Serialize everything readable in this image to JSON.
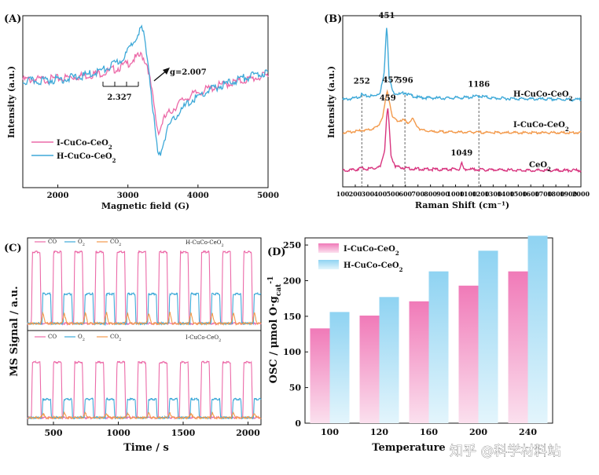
{
  "colors": {
    "pink": "#ec6aa8",
    "blue": "#3ea9d8",
    "orange": "#f39a4c",
    "magenta": "#d8357f",
    "bar_pink_top": "#f07ab8",
    "bar_pink_bottom": "#fbe0ee",
    "bar_blue_top": "#8fd3f2",
    "bar_blue_bottom": "#e3f5fc"
  },
  "watermark": {
    "text": "知乎 @科学材料站"
  },
  "chart_data": [
    {
      "id": "A",
      "panel_label": "(A)",
      "type": "line",
      "title": "",
      "xlabel": "Magnetic field (G)",
      "ylabel": "Intensity (a.u.)",
      "xlim": [
        1500,
        5000
      ],
      "ylim": [
        -1.0,
        1.0
      ],
      "xticks": [
        "2000",
        "3000",
        "4000",
        "5000"
      ],
      "xtick_values": [
        2000,
        3000,
        4000,
        5000
      ],
      "annotations": {
        "g_value": "g=2.007",
        "scale_bar": "2.327"
      },
      "series": [
        {
          "name": "I-CuCo-CeO2",
          "legend_text": "I-CuCo-CeO",
          "legend_sub": "2",
          "color": "#ec6aa8",
          "x": [
            1500,
            1800,
            2100,
            2400,
            2700,
            2900,
            3000,
            3100,
            3200,
            3280,
            3350,
            3420,
            3450,
            3500,
            3600,
            3800,
            4000,
            4300,
            4700,
            5000
          ],
          "y": [
            0.03,
            0.03,
            0.05,
            0.08,
            0.12,
            0.18,
            0.22,
            0.28,
            0.32,
            0.2,
            -0.15,
            -0.55,
            -0.58,
            -0.45,
            -0.35,
            -0.2,
            -0.12,
            -0.04,
            0.03,
            0.08
          ]
        },
        {
          "name": "H-CuCo-CeO2",
          "legend_text": "H-CuCo-CeO",
          "legend_sub": "2",
          "color": "#3ea9d8",
          "x": [
            1500,
            1800,
            2100,
            2400,
            2700,
            2900,
            3000,
            3100,
            3180,
            3220,
            3300,
            3380,
            3430,
            3460,
            3550,
            3700,
            3900,
            4200,
            4600,
            5000
          ],
          "y": [
            0.01,
            0.02,
            0.04,
            0.08,
            0.16,
            0.26,
            0.36,
            0.52,
            0.64,
            0.58,
            0.15,
            -0.5,
            -0.88,
            -0.85,
            -0.58,
            -0.38,
            -0.22,
            -0.08,
            0.04,
            0.12
          ]
        }
      ]
    },
    {
      "id": "B",
      "panel_label": "(B)",
      "type": "line",
      "title": "",
      "xlabel": "Raman Shift (cm⁻¹)",
      "ylabel": "Intensity (a.u.)",
      "xlim": [
        100,
        2000
      ],
      "xticks": [
        "100",
        "200",
        "300",
        "400",
        "500",
        "600",
        "700",
        "800",
        "900",
        "1000",
        "1100",
        "1200",
        "1300",
        "1400",
        "1500",
        "1600",
        "1700",
        "1800",
        "1900",
        "2000"
      ],
      "xtick_values": [
        100,
        200,
        300,
        400,
        500,
        600,
        700,
        800,
        900,
        1000,
        1100,
        1200,
        1300,
        1400,
        1500,
        1600,
        1700,
        1800,
        1900,
        2000
      ],
      "peak_labels": [
        {
          "x": 252,
          "text": "252",
          "series": 0
        },
        {
          "x": 451,
          "text": "451",
          "series": 0
        },
        {
          "x": 596,
          "text": "596",
          "series": 0
        },
        {
          "x": 1186,
          "text": "1186",
          "series": 0
        },
        {
          "x": 457,
          "text": "457",
          "series": 1
        },
        {
          "x": 459,
          "text": "459",
          "series": 2
        },
        {
          "x": 1049,
          "text": "1049",
          "series": 2
        }
      ],
      "series": [
        {
          "name": "H-CuCo-CeO2",
          "label_text": "H-CuCo-CeO",
          "label_sub": "2",
          "color": "#3ea9d8",
          "x": [
            100,
            200,
            240,
            252,
            270,
            350,
            400,
            430,
            445,
            451,
            458,
            470,
            500,
            560,
            596,
            620,
            700,
            900,
            1100,
            1186,
            1300,
            1600,
            2000
          ],
          "y": [
            0.0,
            0.02,
            0.05,
            0.07,
            0.05,
            0.05,
            0.1,
            0.35,
            0.85,
            1.0,
            0.8,
            0.3,
            0.1,
            0.07,
            0.1,
            0.07,
            0.03,
            0.02,
            0.03,
            0.05,
            0.02,
            0.01,
            0.0
          ]
        },
        {
          "name": "I-CuCo-CeO2",
          "label_text": "I-CuCo-CeO",
          "label_sub": "2",
          "color": "#f39a4c",
          "x": [
            100,
            200,
            250,
            300,
            380,
            420,
            445,
            457,
            470,
            500,
            540,
            580,
            600,
            620,
            660,
            680,
            720,
            800,
            1000,
            1400,
            2000
          ],
          "y": [
            0.0,
            0.02,
            0.04,
            0.04,
            0.1,
            0.28,
            0.6,
            0.72,
            0.55,
            0.25,
            0.2,
            0.22,
            0.2,
            0.17,
            0.24,
            0.15,
            0.05,
            0.02,
            0.01,
            0.0,
            0.0
          ]
        },
        {
          "name": "CeO2",
          "label_text": "CeO",
          "label_sub": "2",
          "color": "#d8357f",
          "x": [
            100,
            200,
            250,
            300,
            400,
            435,
            450,
            459,
            468,
            485,
            520,
            600,
            700,
            900,
            1030,
            1049,
            1065,
            1200,
            1600,
            2000
          ],
          "y": [
            0.0,
            0.01,
            0.03,
            0.02,
            0.05,
            0.3,
            0.75,
            0.88,
            0.7,
            0.2,
            0.06,
            0.03,
            0.02,
            0.01,
            0.02,
            0.1,
            0.02,
            0.01,
            0.0,
            0.0
          ]
        }
      ]
    },
    {
      "id": "C",
      "panel_label": "(C)",
      "type": "line",
      "title": "",
      "xlabel": "Time / s",
      "ylabel": "MS Signal / a.u.",
      "xlim": [
        300,
        2100
      ],
      "xticks": [
        "500",
        "1000",
        "1500",
        "2000"
      ],
      "xtick_values": [
        500,
        1000,
        1500,
        2000
      ],
      "pulse_period_s": 163,
      "pulse_count": 11,
      "first_pulse_start_s": 330,
      "pulse_width_s": 75,
      "subpanels": [
        {
          "title_text": "H-CuCo-CeO",
          "title_sub": "2",
          "legend": [
            {
              "name": "CO",
              "sub": "",
              "color": "#ec6aa8"
            },
            {
              "name": "O",
              "sub": "2",
              "color": "#3ea9d8"
            },
            {
              "name": "CO",
              "sub": "2",
              "color": "#f39a4c"
            }
          ],
          "levels": {
            "CO": 0.92,
            "O2": 0.38,
            "CO2": 0.14
          }
        },
        {
          "title_text": "I-CuCo-CeO",
          "title_sub": "2",
          "legend": [
            {
              "name": "CO",
              "sub": "",
              "color": "#ec6aa8"
            },
            {
              "name": "O",
              "sub": "2",
              "color": "#3ea9d8"
            },
            {
              "name": "CO",
              "sub": "2",
              "color": "#f39a4c"
            }
          ],
          "levels": {
            "CO": 0.72,
            "O2": 0.24,
            "CO2": 0.06
          }
        }
      ]
    },
    {
      "id": "D",
      "panel_label": "(D)",
      "type": "bar",
      "title": "",
      "xlabel": "Temperature",
      "ylabel": "OSC / μmol O·g",
      "ylabel_sub": "cat",
      "ylabel_sup": "-1",
      "ylim": [
        0,
        260
      ],
      "yticks": [
        "0",
        "50",
        "100",
        "150",
        "200",
        "250"
      ],
      "ytick_values": [
        0,
        50,
        100,
        150,
        200,
        250
      ],
      "categories": [
        "100",
        "120",
        "160",
        "200",
        "240"
      ],
      "series": [
        {
          "name": "I-CuCo-CeO2",
          "legend_text": "I-CuCo-CeO",
          "legend_sub": "2",
          "values": [
            133,
            151,
            171,
            193,
            213
          ]
        },
        {
          "name": "H-CuCo-CeO2",
          "legend_text": "H-CuCo-CeO",
          "legend_sub": "2",
          "values": [
            156,
            177,
            213,
            242,
            263
          ]
        }
      ]
    }
  ]
}
